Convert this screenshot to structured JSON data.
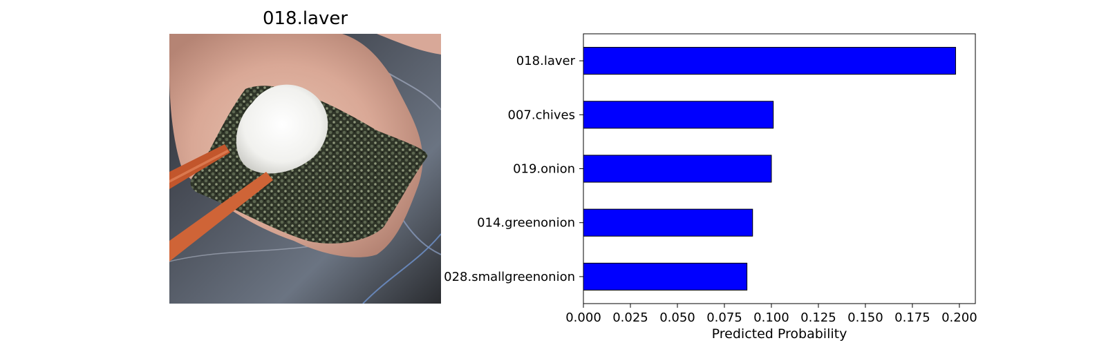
{
  "photo": {
    "title": "018.laver",
    "description_icon": "food-photo"
  },
  "chart_data": {
    "type": "bar",
    "orientation": "horizontal",
    "categories": [
      "018.laver",
      "007.chives",
      "019.onion",
      "014.greenonion",
      "028.smallgreenonion"
    ],
    "values": [
      0.198,
      0.101,
      0.1,
      0.09,
      0.087
    ],
    "xlabel": "Predicted Probability",
    "ylabel": "",
    "title": "",
    "xlim": [
      0.0,
      0.2085
    ],
    "xticks": [
      "0.000",
      "0.025",
      "0.050",
      "0.075",
      "0.100",
      "0.125",
      "0.150",
      "0.175",
      "0.200"
    ],
    "xtick_values": [
      0.0,
      0.025,
      0.05,
      0.075,
      0.1,
      0.125,
      0.15,
      0.175,
      0.2
    ],
    "bar_color": "#0000ff",
    "edge_color": "#000000",
    "grid": false,
    "legend": "none"
  }
}
